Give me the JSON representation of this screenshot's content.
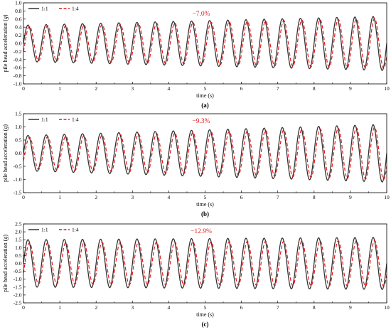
{
  "chart_data": [
    {
      "type": "line",
      "panel_label": "(a)",
      "xlabel": "time (s)",
      "ylabel": "pile head acceleration (g)",
      "xlim": [
        0,
        10
      ],
      "ylim": [
        -1.0,
        1.0
      ],
      "xticks": [
        "0",
        "1",
        "2",
        "3",
        "4",
        "5",
        "6",
        "7",
        "8",
        "9",
        "10"
      ],
      "yticks": [
        "1.0",
        "0.8",
        "0.6",
        "0.4",
        "0.2",
        "0.0",
        "-0.2",
        "-0.4",
        "-0.6",
        "-0.8",
        "-1.0"
      ],
      "ytick_values": [
        1.0,
        0.8,
        0.6,
        0.4,
        0.2,
        0.0,
        -0.2,
        -0.4,
        -0.6,
        -0.8,
        -1.0
      ],
      "annotation": "−7.0%",
      "legend_position": "top-left",
      "frequency_hz": 2,
      "series": [
        {
          "name": "1:1",
          "color": "#333333",
          "style": "solid",
          "amplitude_start": 0.45,
          "amplitude_end": 0.67,
          "phase_shift_s": 0
        },
        {
          "name": "1:4",
          "color": "#e31a1c",
          "style": "dashed",
          "amplitude_start": 0.42,
          "amplitude_end": 0.62,
          "phase_shift_s": 0.04
        }
      ]
    },
    {
      "type": "line",
      "panel_label": "(b)",
      "xlabel": "time (s)",
      "ylabel": "pile head acceleration (g)",
      "xlim": [
        0,
        10
      ],
      "ylim": [
        -1.5,
        1.5
      ],
      "xticks": [
        "0",
        "1",
        "2",
        "3",
        "4",
        "5",
        "6",
        "7",
        "8",
        "9",
        "10"
      ],
      "yticks": [
        "1.5",
        "1.0",
        "0.5",
        "0.0",
        "-0.5",
        "-1.0",
        "-1.5"
      ],
      "ytick_values": [
        1.5,
        1.0,
        0.5,
        0.0,
        -0.5,
        -1.0,
        -1.5
      ],
      "annotation": "−9.3%",
      "legend_position": "top-left",
      "frequency_hz": 2,
      "series": [
        {
          "name": "1:1",
          "color": "#333333",
          "style": "solid",
          "amplitude_start": 0.67,
          "amplitude_end": 1.1,
          "phase_shift_s": 0
        },
        {
          "name": "1:4",
          "color": "#e31a1c",
          "style": "dashed",
          "amplitude_start": 0.6,
          "amplitude_end": 1.0,
          "phase_shift_s": 0.04
        }
      ]
    },
    {
      "type": "line",
      "panel_label": "(c)",
      "xlabel": "time (s)",
      "ylabel": "pile head acceleration (g)",
      "xlim": [
        0,
        10
      ],
      "ylim": [
        -2.5,
        2.5
      ],
      "xticks": [
        "0",
        "1",
        "2",
        "3",
        "4",
        "5",
        "6",
        "7",
        "8",
        "9",
        "10"
      ],
      "yticks": [
        "2.5",
        "2.0",
        "1.5",
        "1.0",
        "0.5",
        "0.0",
        "-0.5",
        "-1.0",
        "-1.5",
        "-2.0",
        "-2.5"
      ],
      "ytick_values": [
        2.5,
        2.0,
        1.5,
        1.0,
        0.5,
        0.0,
        -0.5,
        -1.0,
        -1.5,
        -2.0,
        -2.5
      ],
      "annotation": "−12.9%",
      "legend_position": "top-left",
      "frequency_hz": 2,
      "series": [
        {
          "name": "1:1",
          "color": "#333333",
          "style": "solid",
          "amplitude_start": 1.5,
          "amplitude_end": 1.65,
          "phase_shift_s": 0
        },
        {
          "name": "1:4",
          "color": "#e31a1c",
          "style": "dashed",
          "amplitude_start": 1.3,
          "amplitude_end": 1.45,
          "phase_shift_s": 0.04
        }
      ]
    }
  ]
}
